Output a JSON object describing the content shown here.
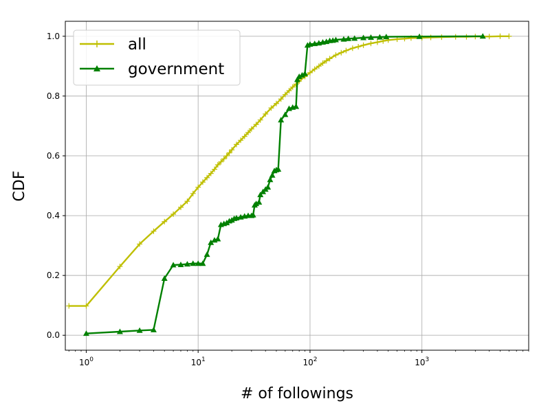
{
  "chart_data": {
    "type": "line",
    "title": "",
    "xlabel": "# of followings",
    "ylabel": "CDF",
    "xscale": "log",
    "xlim": [
      0.65,
      9000
    ],
    "ylim": [
      -0.05,
      1.05
    ],
    "grid": true,
    "legend_position": "top-left",
    "x_ticks": [
      {
        "value": 1,
        "base": "10",
        "exp": "0"
      },
      {
        "value": 10,
        "base": "10",
        "exp": "1"
      },
      {
        "value": 100,
        "base": "10",
        "exp": "2"
      },
      {
        "value": 1000,
        "base": "10",
        "exp": "3"
      }
    ],
    "y_ticks": [
      {
        "value": 0.0,
        "label": "0.0"
      },
      {
        "value": 0.2,
        "label": "0.2"
      },
      {
        "value": 0.4,
        "label": "0.4"
      },
      {
        "value": 0.6,
        "label": "0.6"
      },
      {
        "value": 0.8,
        "label": "0.8"
      },
      {
        "value": 1.0,
        "label": "1.0"
      }
    ],
    "series": [
      {
        "name": "all",
        "color": "#bfbf00",
        "marker": "plus",
        "x": [
          0.7,
          1,
          2,
          3,
          4,
          5,
          6,
          7,
          8,
          9,
          10,
          11,
          12,
          13,
          14,
          15,
          16,
          17,
          18,
          19,
          20,
          22,
          24,
          26,
          28,
          30,
          33,
          36,
          40,
          45,
          50,
          55,
          60,
          65,
          70,
          75,
          80,
          90,
          100,
          110,
          120,
          130,
          140,
          150,
          170,
          190,
          210,
          240,
          270,
          300,
          350,
          400,
          450,
          500,
          600,
          700,
          800,
          1000,
          1200,
          1500,
          2000,
          2500,
          3000,
          4000,
          5000,
          6000
        ],
        "y": [
          0.098,
          0.098,
          0.23,
          0.305,
          0.348,
          0.38,
          0.405,
          0.428,
          0.448,
          0.474,
          0.495,
          0.512,
          0.527,
          0.541,
          0.555,
          0.57,
          0.58,
          0.59,
          0.6,
          0.61,
          0.62,
          0.638,
          0.652,
          0.665,
          0.678,
          0.69,
          0.705,
          0.72,
          0.74,
          0.76,
          0.775,
          0.79,
          0.805,
          0.818,
          0.83,
          0.84,
          0.85,
          0.865,
          0.878,
          0.89,
          0.9,
          0.91,
          0.918,
          0.925,
          0.937,
          0.945,
          0.952,
          0.96,
          0.965,
          0.97,
          0.976,
          0.98,
          0.984,
          0.987,
          0.99,
          0.992,
          0.994,
          0.995,
          0.996,
          0.997,
          0.998,
          0.998,
          0.999,
          0.999,
          1.0,
          1.0
        ]
      },
      {
        "name": "government",
        "color": "#008000",
        "marker": "triangle",
        "x": [
          1,
          2,
          3,
          4,
          5,
          6,
          7,
          8,
          9,
          10,
          11,
          12,
          13,
          14,
          15,
          16,
          17,
          18,
          19,
          20,
          21,
          22,
          24,
          26,
          28,
          30,
          31,
          32,
          33,
          35,
          36,
          38,
          40,
          42,
          44,
          46,
          48,
          50,
          52,
          55,
          60,
          65,
          70,
          75,
          77,
          80,
          85,
          90,
          95,
          100,
          110,
          120,
          130,
          140,
          150,
          160,
          170,
          200,
          220,
          250,
          300,
          350,
          420,
          480,
          950,
          3500
        ],
        "y": [
          0.006,
          0.012,
          0.016,
          0.018,
          0.19,
          0.235,
          0.236,
          0.238,
          0.24,
          0.24,
          0.24,
          0.27,
          0.31,
          0.318,
          0.322,
          0.37,
          0.373,
          0.376,
          0.382,
          0.385,
          0.39,
          0.392,
          0.395,
          0.398,
          0.4,
          0.4,
          0.402,
          0.435,
          0.44,
          0.445,
          0.47,
          0.48,
          0.488,
          0.495,
          0.52,
          0.535,
          0.55,
          0.553,
          0.555,
          0.72,
          0.738,
          0.758,
          0.762,
          0.765,
          0.855,
          0.865,
          0.87,
          0.875,
          0.97,
          0.973,
          0.975,
          0.977,
          0.98,
          0.982,
          0.985,
          0.986,
          0.988,
          0.99,
          0.992,
          0.993,
          0.995,
          0.996,
          0.997,
          0.998,
          0.999,
          1.0
        ]
      }
    ]
  }
}
